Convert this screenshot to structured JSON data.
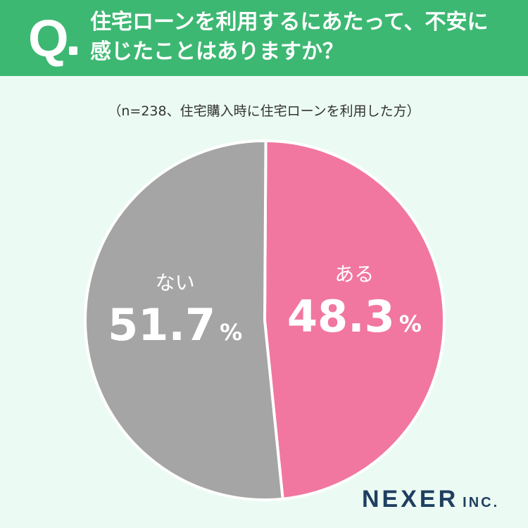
{
  "header": {
    "q_mark": "Q",
    "title_line1": "住宅ローンを利用するにあたって、不安に",
    "title_line2": "感じたことはありますか？"
  },
  "note": "（n=238、住宅購入時に住宅ローンを利用した方）",
  "chart_data": {
    "type": "pie",
    "title": "住宅ローンを利用するにあたって、不安に感じたことはありますか？",
    "subtitle": "（n=238、住宅購入時に住宅ローンを利用した方）",
    "slices": [
      {
        "label": "ある",
        "value": 48.3,
        "display": "48.3",
        "unit": "%",
        "color": "#f177a0"
      },
      {
        "label": "ない",
        "value": 51.7,
        "display": "51.7",
        "unit": "%",
        "color": "#a5a5a5"
      }
    ]
  },
  "logo": {
    "main": "NEXER",
    "sub": "INC."
  }
}
